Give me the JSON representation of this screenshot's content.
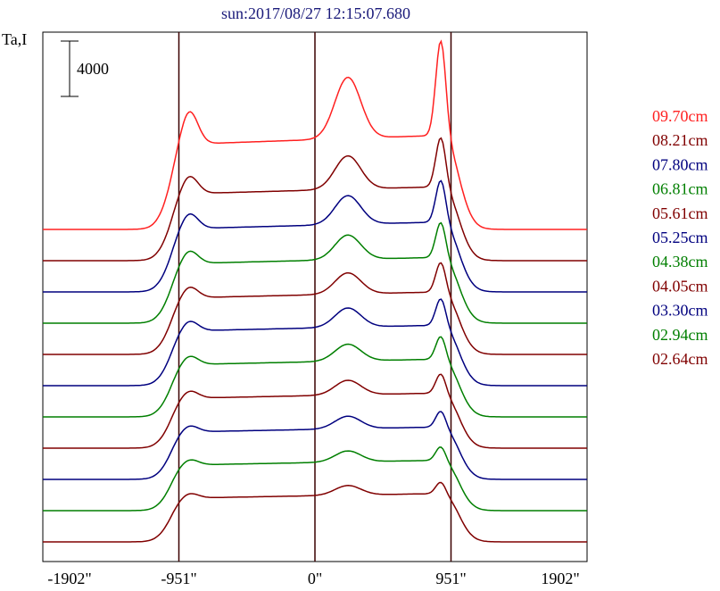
{
  "chart_data": {
    "type": "line",
    "title": "sun:2017/08/27 12:15:07.680",
    "ylabel": "Ta,I",
    "scale_bar_label": "4000",
    "scale_bar_value": 4000,
    "xlim": [
      -1902,
      1902
    ],
    "x_ticks": [
      {
        "value": -1902,
        "label": "-1902\""
      },
      {
        "value": -951,
        "label": "-951\""
      },
      {
        "value": 0,
        "label": "0\""
      },
      {
        "value": 951,
        "label": "951\""
      },
      {
        "value": 1902,
        "label": "1902\""
      }
    ],
    "vlines": [
      -951,
      0,
      951
    ],
    "legend_placement": "right",
    "series": [
      {
        "name": "09.70cm",
        "color": "#ff2020",
        "offset": 10,
        "scale": 1.4
      },
      {
        "name": "08.21cm",
        "color": "#800000",
        "offset": 9,
        "scale": 1.1
      },
      {
        "name": "07.80cm",
        "color": "#00007f",
        "offset": 8,
        "scale": 1.04
      },
      {
        "name": "06.81cm",
        "color": "#007f00",
        "offset": 7,
        "scale": 0.98
      },
      {
        "name": "05.61cm",
        "color": "#800000",
        "offset": 6,
        "scale": 0.93
      },
      {
        "name": "05.25cm",
        "color": "#00007f",
        "offset": 5,
        "scale": 0.9
      },
      {
        "name": "04.38cm",
        "color": "#007f00",
        "offset": 4,
        "scale": 0.86
      },
      {
        "name": "04.05cm",
        "color": "#800000",
        "offset": 3,
        "scale": 0.82
      },
      {
        "name": "03.30cm",
        "color": "#00007f",
        "offset": 2,
        "scale": 0.78
      },
      {
        "name": "02.94cm",
        "color": "#007f00",
        "offset": 1,
        "scale": 0.75
      },
      {
        "name": "02.64cm",
        "color": "#800000",
        "offset": 0,
        "scale": 0.72
      }
    ]
  }
}
